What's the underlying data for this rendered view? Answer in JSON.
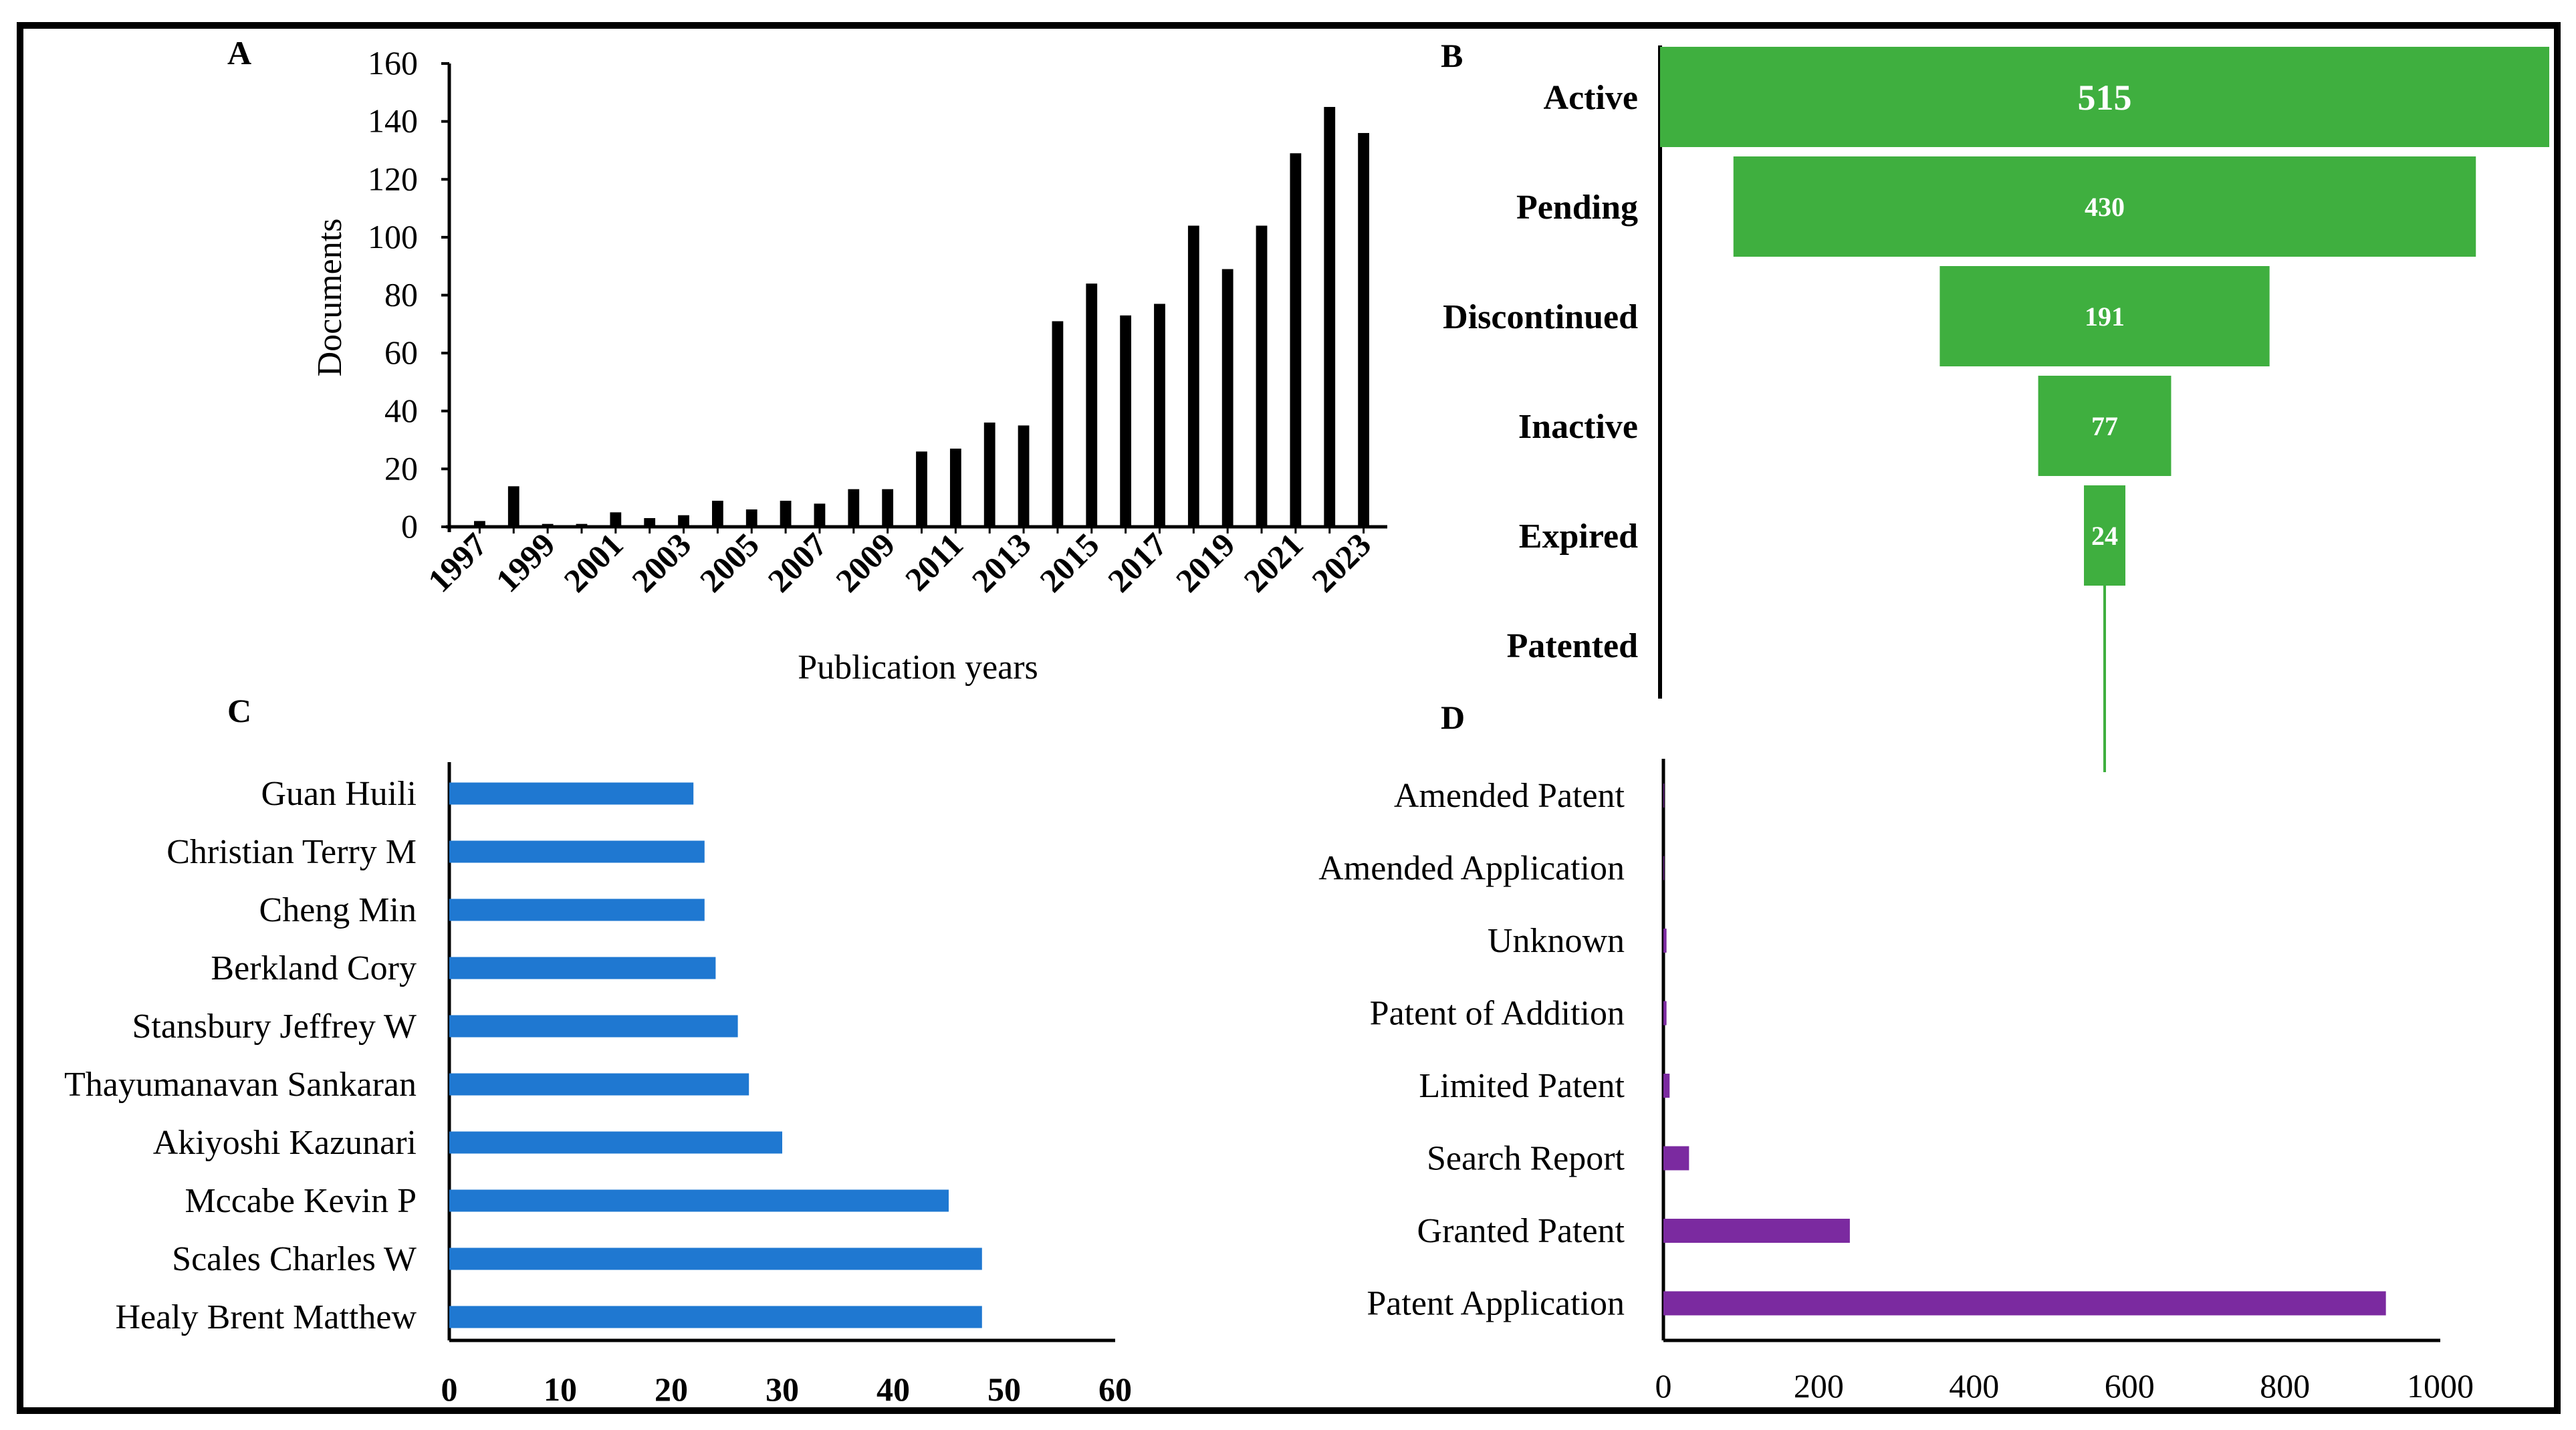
{
  "chart_data": [
    {
      "panel": "A",
      "type": "bar",
      "xlabel": "Publication years",
      "ylabel": "Documents",
      "ylim": [
        0,
        160
      ],
      "yticks": [
        0,
        20,
        40,
        60,
        80,
        100,
        120,
        140,
        160
      ],
      "x_tick_labels": [
        "1997",
        "1999",
        "2001",
        "2003",
        "2005",
        "2007",
        "2009",
        "2011",
        "2013",
        "2015",
        "2017",
        "2019",
        "2021",
        "2023"
      ],
      "color": "#000000",
      "categories": [
        "1997",
        "1998",
        "1999",
        "2000",
        "2001",
        "2002",
        "2003",
        "2004",
        "2005",
        "2006",
        "2007",
        "2008",
        "2009",
        "2010",
        "2011",
        "2012",
        "2013",
        "2014",
        "2015",
        "2016",
        "2017",
        "2018",
        "2019",
        "2020",
        "2021",
        "2022",
        "2023"
      ],
      "values": [
        2,
        14,
        1,
        1,
        5,
        3,
        4,
        9,
        6,
        9,
        8,
        13,
        13,
        26,
        27,
        36,
        35,
        71,
        84,
        73,
        77,
        104,
        89,
        104,
        129,
        145,
        136
      ]
    },
    {
      "panel": "B",
      "type": "bar",
      "orientation": "funnel",
      "color": "#3faf3f",
      "categories": [
        "Active",
        "Pending",
        "Discontinued",
        "Inactive",
        "Expired",
        "Patented"
      ],
      "values": [
        515,
        430,
        191,
        77,
        24,
        1
      ],
      "labels": [
        "515",
        "430",
        "191",
        "77",
        "24",
        ""
      ]
    },
    {
      "panel": "C",
      "type": "bar",
      "orientation": "horizontal",
      "color": "#1f78d1",
      "xlim": [
        0,
        60
      ],
      "xticks": [
        0,
        10,
        20,
        30,
        40,
        50,
        60
      ],
      "categories": [
        "Guan Huili",
        "Christian Terry M",
        "Cheng Min",
        "Berkland Cory",
        "Stansbury Jeffrey W",
        "Thayumanavan Sankaran",
        "Akiyoshi Kazunari",
        "Mccabe Kevin P",
        "Scales Charles W",
        "Healy Brent Matthew"
      ],
      "values": [
        22,
        23,
        23,
        24,
        26,
        27,
        30,
        45,
        48,
        48
      ]
    },
    {
      "panel": "D",
      "type": "bar",
      "orientation": "horizontal",
      "color": "#7b2aa0",
      "xlim": [
        0,
        1000
      ],
      "xticks": [
        0,
        200,
        400,
        600,
        800,
        1000
      ],
      "categories": [
        "Amended Patent",
        "Amended Application",
        "Unknown",
        "Patent of Addition",
        "Limited Patent",
        "Search Report",
        "Granted Patent",
        "Patent Application"
      ],
      "values": [
        1,
        1,
        4,
        4,
        8,
        33,
        240,
        930
      ]
    }
  ]
}
